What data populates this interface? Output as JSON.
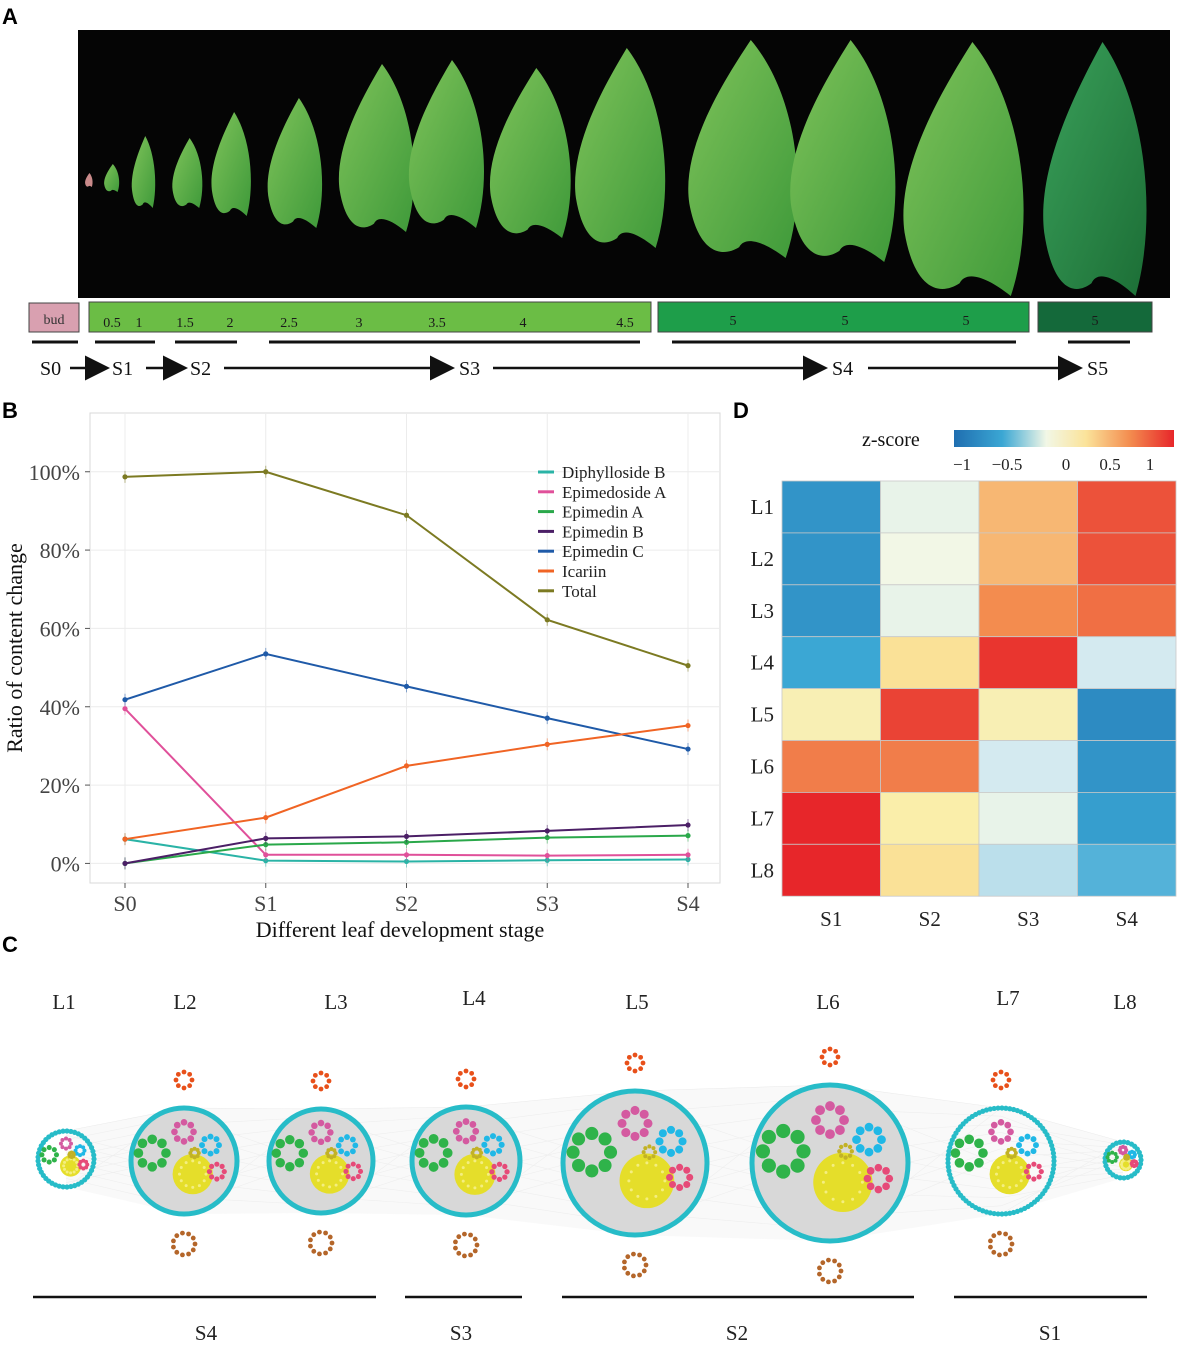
{
  "panels": {
    "a": "A",
    "b": "B",
    "c": "C",
    "d": "D"
  },
  "panel_a": {
    "image_description_name": "leaf-series-photo",
    "bud_label": "bud",
    "segments": [
      {
        "labels": [
          "0.5",
          "1",
          "1.5",
          "2",
          "2.5",
          "3",
          "3.5",
          "4",
          "4.5"
        ],
        "color": "#6bbd45"
      },
      {
        "labels": [
          "5",
          "5",
          "5"
        ],
        "color": "#1e9e4a"
      },
      {
        "labels": [
          "5"
        ],
        "color": "#14693a"
      }
    ],
    "bud_color": "#d9a0b0",
    "stages": [
      "S0",
      "S1",
      "S2",
      "S3",
      "S4",
      "S5"
    ]
  },
  "chart_data": [
    {
      "type": "line",
      "title": "",
      "xlabel": "Different leaf development stage",
      "ylabel": "Ratio of content change",
      "categories": [
        "S0",
        "S1",
        "S2",
        "S3",
        "S4"
      ],
      "ylim": [
        -0.05,
        1.15
      ],
      "yticks": [
        0,
        0.2,
        0.4,
        0.6,
        0.8,
        1.0
      ],
      "ytick_labels": [
        "0%",
        "20%",
        "40%",
        "60%",
        "80%",
        "100%"
      ],
      "series": [
        {
          "name": "Diphylloside B",
          "color": "#2ab3a6",
          "values": [
            0.062,
            0.007,
            0.005,
            0.008,
            0.01
          ]
        },
        {
          "name": "Epimedoside A",
          "color": "#e0509a",
          "values": [
            0.395,
            0.022,
            0.022,
            0.02,
            0.022
          ]
        },
        {
          "name": "Epimedin A",
          "color": "#2aa84a",
          "values": [
            0.0,
            0.048,
            0.054,
            0.066,
            0.071
          ]
        },
        {
          "name": "Epimedin B",
          "color": "#4b1f66",
          "values": [
            0.0,
            0.064,
            0.069,
            0.083,
            0.098
          ]
        },
        {
          "name": "Epimedin C",
          "color": "#1f5aa8",
          "values": [
            0.418,
            0.535,
            0.452,
            0.371,
            0.292
          ]
        },
        {
          "name": "Icariin",
          "color": "#f06424",
          "values": [
            0.062,
            0.117,
            0.249,
            0.304,
            0.352
          ]
        },
        {
          "name": "Total",
          "color": "#7c7a22",
          "values": [
            0.987,
            1.0,
            0.889,
            0.622,
            0.505
          ]
        }
      ]
    },
    {
      "type": "heatmap",
      "title": "",
      "colorbar_title": "z-score",
      "colorbar_ticks": [
        "−1",
        "−0.5",
        "0",
        "0.5",
        "1"
      ],
      "rows": [
        "L1",
        "L2",
        "L3",
        "L4",
        "L5",
        "L6",
        "L7",
        "L8"
      ],
      "columns": [
        "S1",
        "S2",
        "S3",
        "S4"
      ],
      "values": [
        [
          -1.1,
          -0.1,
          0.6,
          1.2
        ],
        [
          -1.1,
          0.0,
          0.6,
          1.2
        ],
        [
          -1.1,
          -0.1,
          0.8,
          1.0
        ],
        [
          -0.9,
          0.4,
          1.4,
          -0.3
        ],
        [
          0.25,
          1.3,
          0.25,
          -1.2
        ],
        [
          0.9,
          0.9,
          -0.3,
          -1.1
        ],
        [
          1.5,
          0.3,
          -0.1,
          -1.0
        ],
        [
          1.5,
          0.4,
          -0.4,
          -0.8
        ]
      ]
    }
  ],
  "panel_c": {
    "modules": [
      "L1",
      "L2",
      "L3",
      "L4",
      "L5",
      "L6",
      "L7",
      "L8"
    ],
    "stage_groups": [
      "S4",
      "S3",
      "S2",
      "S1"
    ]
  }
}
